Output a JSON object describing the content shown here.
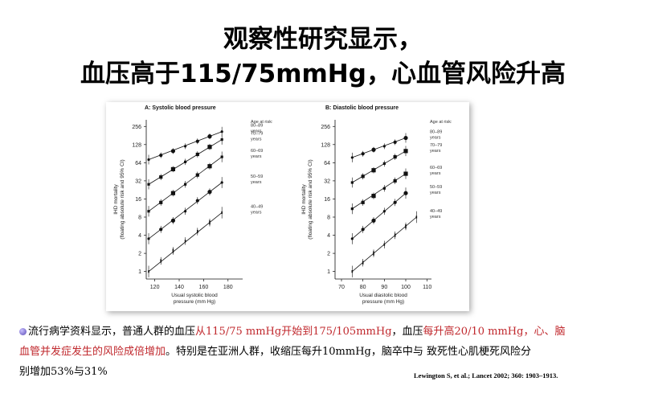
{
  "title_line1": "观察性研究显示，",
  "title_line2": "血压高于115/75mmHg，心血管风险升高",
  "body": {
    "p1": "流行病学资料显示，普通人群的血压",
    "p2": "从115/75 mmHg开始到175/105mmHg",
    "p3": "，血压",
    "p4": "每升高20/10 mmHg，心、脑",
    "p5": "血管并发症发生的风险成倍增加",
    "p6": "。特别是在亚洲人群，收缩压每升10mmHg，脑卒中与 致死性心肌梗死风险分",
    "p7": "别增加53%与31%"
  },
  "citation": "Lewington S, et al.; Lancet 2002; 360: 1903–1913.",
  "colors": {
    "text_red": "#c0282d",
    "ink": "#111111"
  },
  "chart_data": [
    {
      "type": "scatter",
      "title": "A: Systolic blood pressure",
      "xlabel": "Usual systolic blood pressure (mm Hg)",
      "xlabel_lines": [
        "Usual systolic blood",
        "pressure (mm Hg)"
      ],
      "ylabel_lines": [
        "IHD mortality",
        "(floating absolute risk and 95% CI)"
      ],
      "y_scale": "log2",
      "xlim": [
        113,
        192
      ],
      "ylim": [
        0.75,
        330
      ],
      "x_ticks": [
        120,
        140,
        160,
        180
      ],
      "y_ticks": [
        1,
        2,
        4,
        8,
        16,
        32,
        64,
        128,
        256
      ],
      "legend_title": "Age at risk:",
      "series": [
        {
          "name": "80–89 years",
          "x": [
            115,
            125,
            135,
            145,
            155,
            165,
            175
          ],
          "y": [
            72,
            85,
            100,
            120,
            145,
            175,
            210
          ]
        },
        {
          "name": "70–79 years",
          "x": [
            115,
            125,
            135,
            145,
            155,
            165,
            175
          ],
          "y": [
            28,
            37,
            50,
            66,
            88,
            117,
            155
          ]
        },
        {
          "name": "60–69 years",
          "x": [
            115,
            125,
            135,
            145,
            155,
            165,
            175
          ],
          "y": [
            10,
            14,
            20,
            28,
            40,
            56,
            80
          ]
        },
        {
          "name": "50–59 years",
          "x": [
            115,
            125,
            135,
            145,
            155,
            165,
            175
          ],
          "y": [
            3.5,
            5,
            7,
            10,
            15,
            21,
            30
          ]
        },
        {
          "name": "40–49 years",
          "x": [
            115,
            125,
            135,
            145,
            155,
            165,
            175
          ],
          "y": [
            1,
            1.5,
            2.2,
            3.2,
            4.6,
            6.5,
            9.5
          ]
        }
      ]
    },
    {
      "type": "scatter",
      "title": "B: Diastolic blood pressure",
      "xlabel": "Usual diastolic blood pressure (mm Hg)",
      "xlabel_lines": [
        "Usual diastolic blood",
        "pressure (mm Hg)"
      ],
      "ylabel_lines": [
        "IHD mortality",
        "(floating absolute risk and 95% CI)"
      ],
      "y_scale": "log2",
      "xlim": [
        67,
        112
      ],
      "ylim": [
        0.75,
        330
      ],
      "x_ticks": [
        70,
        80,
        90,
        100,
        110
      ],
      "y_ticks": [
        1,
        2,
        4,
        8,
        16,
        32,
        64,
        128,
        256
      ],
      "legend_title": "Age at risk:",
      "series": [
        {
          "name": "80–89 years",
          "x": [
            75,
            80,
            85,
            90,
            95,
            100
          ],
          "y": [
            78,
            90,
            105,
            120,
            140,
            165
          ]
        },
        {
          "name": "70–79 years",
          "x": [
            75,
            80,
            85,
            90,
            95,
            100
          ],
          "y": [
            30,
            38,
            48,
            62,
            80,
            100
          ]
        },
        {
          "name": "60–69 years",
          "x": [
            75,
            80,
            85,
            90,
            95,
            100
          ],
          "y": [
            11,
            14,
            18,
            24,
            32,
            42
          ]
        },
        {
          "name": "50–59 years",
          "x": [
            75,
            80,
            85,
            90,
            95,
            100
          ],
          "y": [
            3.5,
            5,
            7,
            10,
            14,
            20
          ]
        },
        {
          "name": "40–49 years",
          "x": [
            75,
            80,
            85,
            90,
            95,
            100,
            105
          ],
          "y": [
            1,
            1.4,
            2,
            2.8,
            4,
            5.6,
            8
          ]
        }
      ]
    }
  ]
}
